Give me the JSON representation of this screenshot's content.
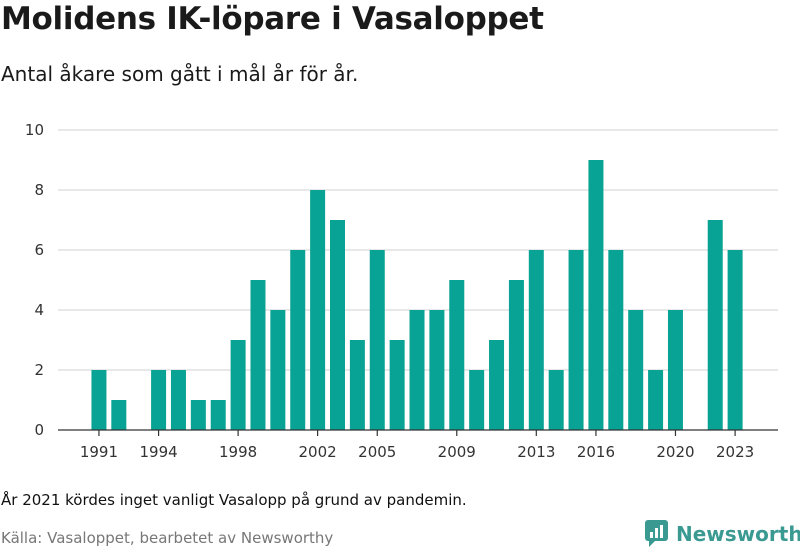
{
  "title": "Molidens IK-löpare i Vasaloppet",
  "subtitle": "Antal åkare som gått i mål år för år.",
  "note": "År 2021 kördes inget vanligt Vasalopp på grund av pandemin.",
  "source": "Källa: Vasaloppet, bearbetet av Newsworthy",
  "brand": {
    "name": "Newsworthy",
    "logo_icon": "newsworthy-logo-icon",
    "color": "#3a9a92"
  },
  "chart_data": {
    "type": "bar",
    "bar_color": "#08a394",
    "grid": true,
    "ylim": [
      0,
      10
    ],
    "yticks": [
      "0",
      "2",
      "4",
      "6",
      "8",
      "10"
    ],
    "xticks": [
      "1991",
      "1994",
      "1998",
      "2002",
      "2005",
      "2009",
      "2013",
      "2016",
      "2020",
      "2023"
    ],
    "x": [
      1991,
      1992,
      1993,
      1994,
      1995,
      1996,
      1997,
      1998,
      1999,
      2000,
      2001,
      2002,
      2003,
      2004,
      2005,
      2006,
      2007,
      2008,
      2009,
      2010,
      2011,
      2012,
      2013,
      2014,
      2015,
      2016,
      2017,
      2018,
      2019,
      2020,
      2021,
      2022,
      2023
    ],
    "values": [
      2,
      1,
      0,
      2,
      2,
      1,
      1,
      3,
      5,
      4,
      6,
      8,
      7,
      3,
      6,
      3,
      4,
      4,
      5,
      2,
      3,
      5,
      6,
      2,
      6,
      9,
      6,
      4,
      2,
      4,
      0,
      7,
      6
    ]
  }
}
